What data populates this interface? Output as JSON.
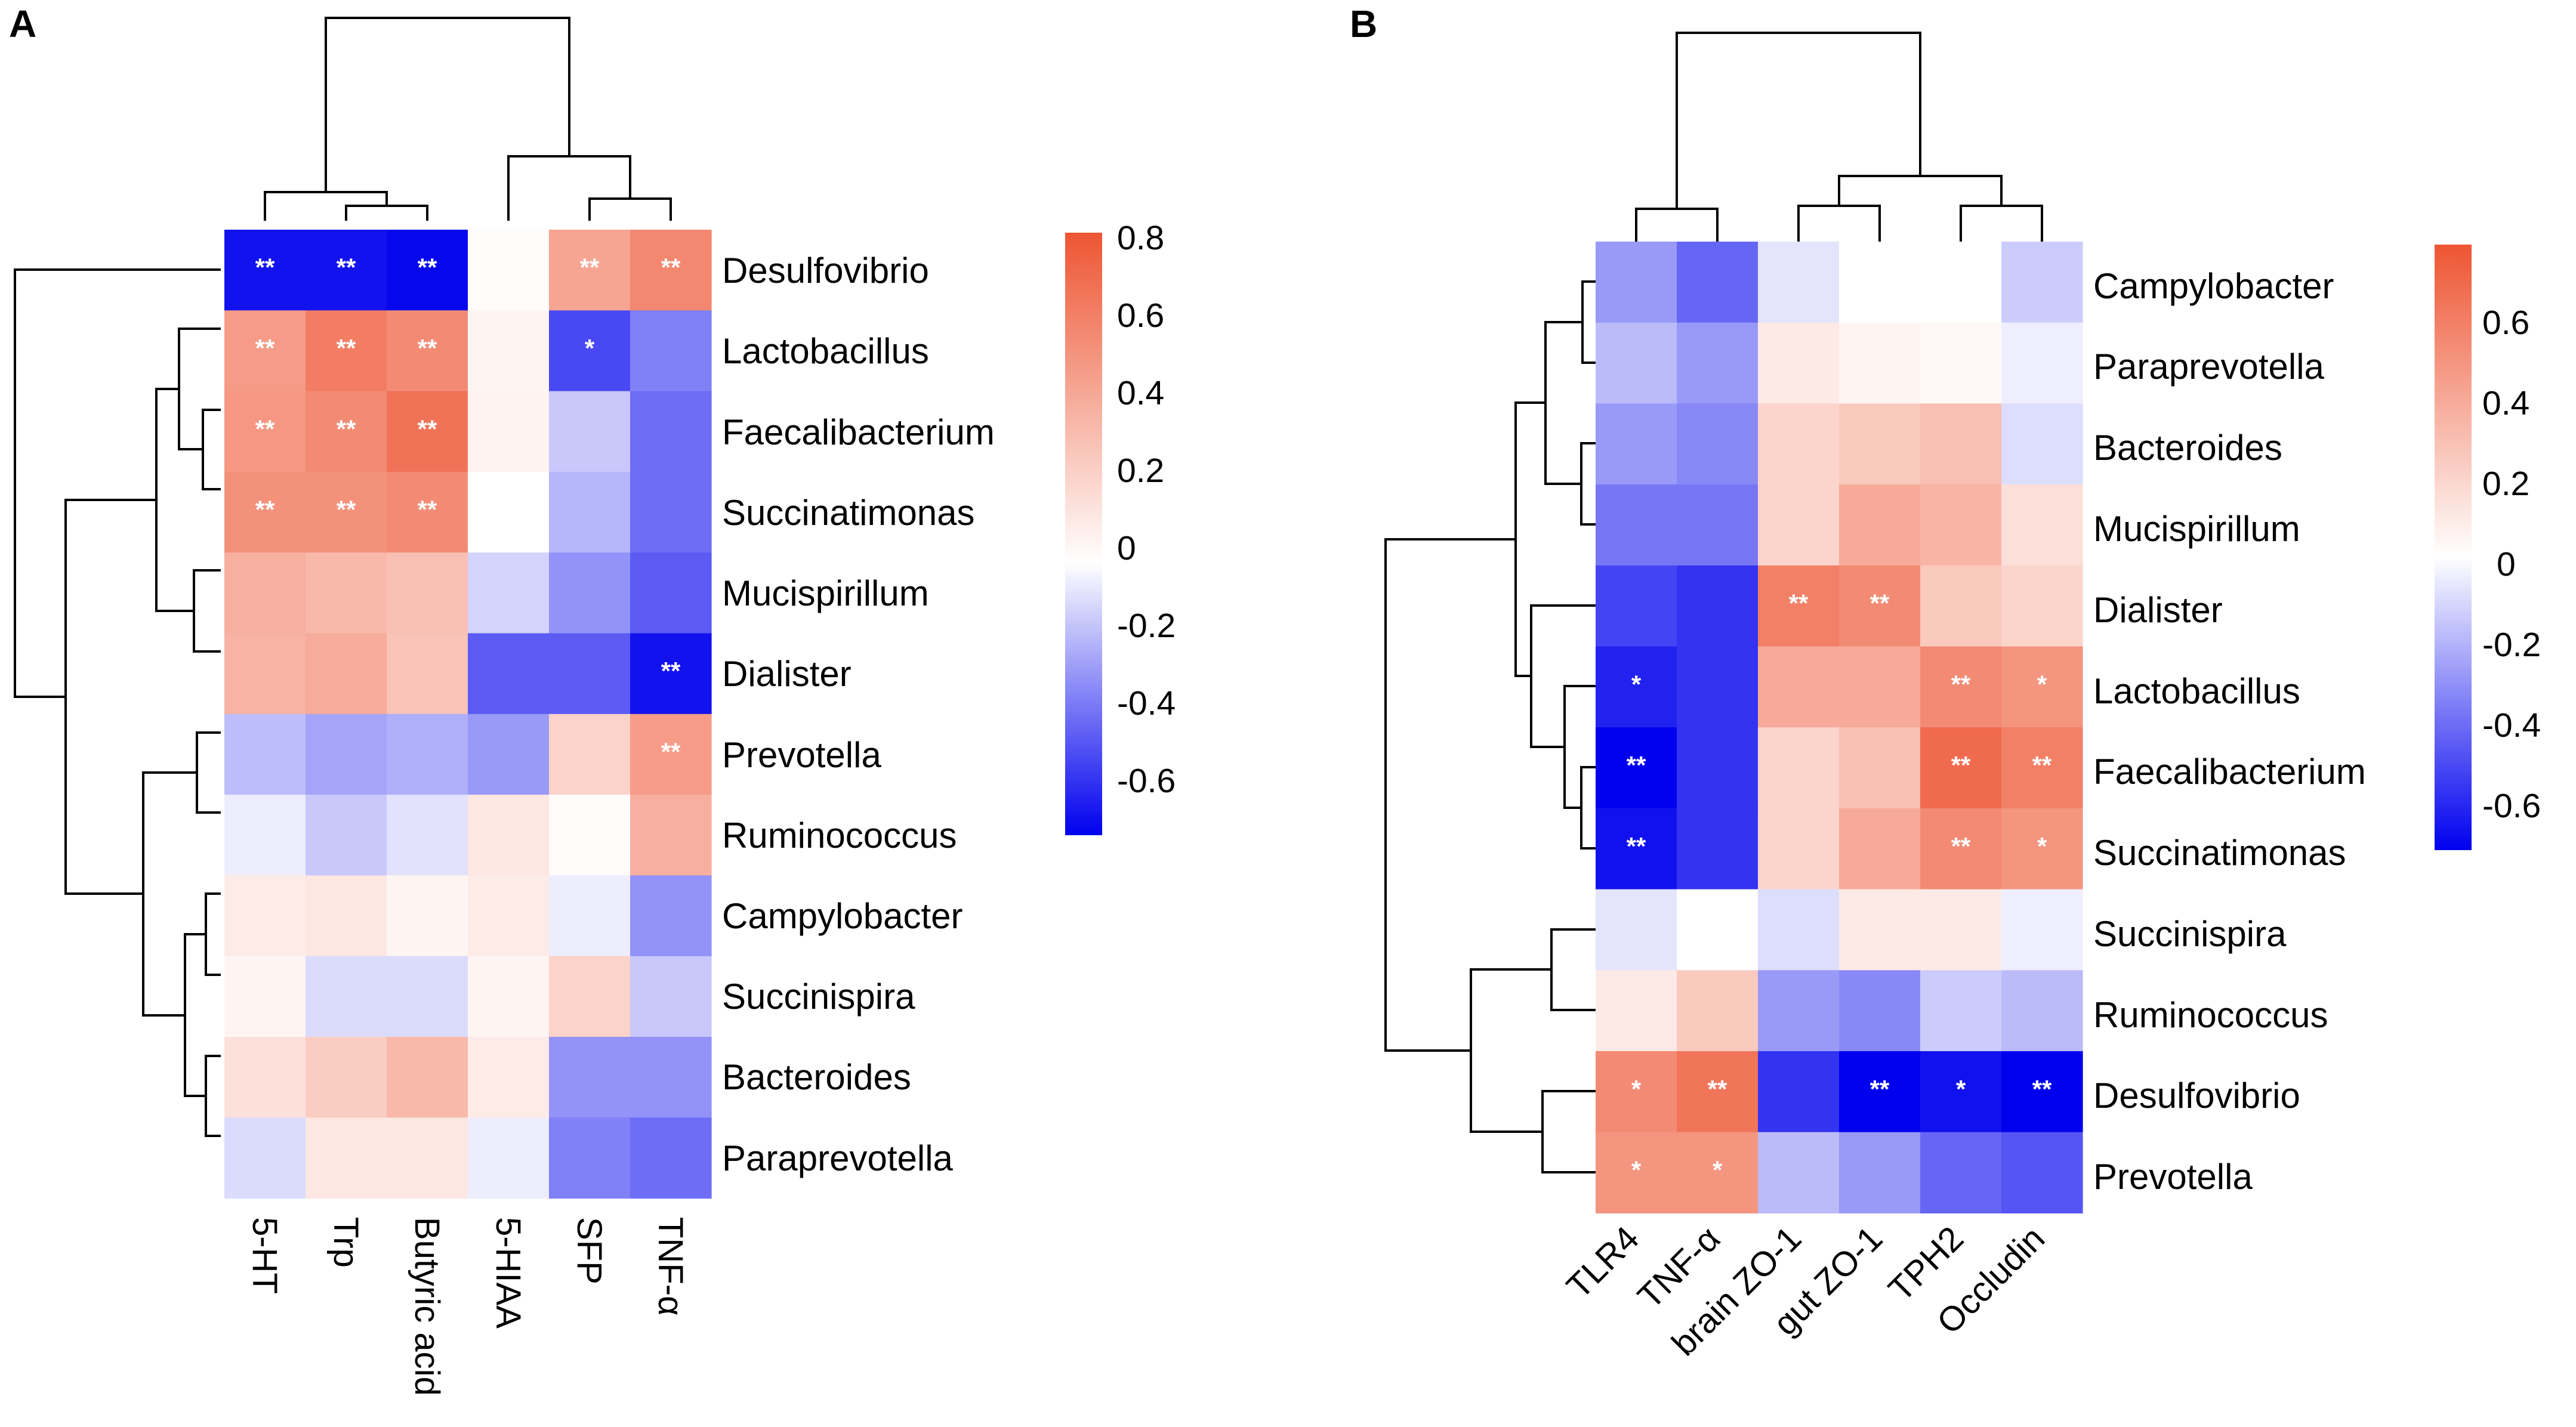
{
  "chart_data": [
    {
      "panel": "A",
      "type": "heatmap",
      "columns": [
        "5-HT",
        "Trp",
        "Butyric acid",
        "5-HIAA",
        "SFP",
        "TNF-α"
      ],
      "rows": [
        "Desulfovibrio",
        "Lactobacillus",
        "Faecalibacterium",
        "Succinatimonas",
        "Mucispirillum",
        "Dialister",
        "Prevotella",
        "Ruminococcus",
        "Campylobacter",
        "Succinispira",
        "Bacteroides",
        "Paraprevotella"
      ],
      "values": [
        [
          -0.65,
          -0.65,
          -0.68,
          0.02,
          0.45,
          0.6
        ],
        [
          0.5,
          0.65,
          0.58,
          0.05,
          -0.5,
          -0.35
        ],
        [
          0.52,
          0.58,
          0.7,
          0.06,
          -0.15,
          -0.4
        ],
        [
          0.55,
          0.55,
          0.58,
          0.0,
          -0.2,
          -0.4
        ],
        [
          0.4,
          0.35,
          0.32,
          -0.12,
          -0.3,
          -0.45
        ],
        [
          0.38,
          0.42,
          0.3,
          -0.45,
          -0.45,
          -0.65
        ],
        [
          -0.18,
          -0.25,
          -0.22,
          -0.28,
          0.22,
          0.5
        ],
        [
          -0.05,
          -0.15,
          -0.08,
          0.12,
          0.02,
          0.4
        ],
        [
          0.1,
          0.12,
          0.05,
          0.1,
          -0.05,
          -0.3
        ],
        [
          0.05,
          -0.1,
          -0.1,
          0.05,
          0.22,
          -0.15
        ],
        [
          0.15,
          0.25,
          0.35,
          0.1,
          -0.3,
          -0.3
        ],
        [
          -0.1,
          0.12,
          0.12,
          -0.05,
          -0.35,
          -0.4
        ]
      ],
      "significance": [
        [
          "**",
          "**",
          "**",
          "",
          "**",
          "**"
        ],
        [
          "**",
          "**",
          "**",
          "",
          "*",
          ""
        ],
        [
          "**",
          "**",
          "**",
          "",
          "",
          ""
        ],
        [
          "**",
          "**",
          "**",
          "",
          "",
          ""
        ],
        [
          "",
          "",
          "",
          "",
          "",
          ""
        ],
        [
          "",
          "",
          "",
          "",
          "",
          "**"
        ],
        [
          "",
          "",
          "",
          "",
          "",
          "**"
        ],
        [
          "",
          "",
          "",
          "",
          "",
          ""
        ],
        [
          "",
          "",
          "",
          "",
          "",
          ""
        ],
        [
          "",
          "",
          "",
          "",
          "",
          ""
        ],
        [
          "",
          "",
          "",
          "",
          "",
          ""
        ],
        [
          "",
          "",
          "",
          "",
          "",
          ""
        ]
      ],
      "colorbar": {
        "ticks": [
          "0.8",
          "0.6",
          "0.4",
          "0.2",
          "0",
          "-0.2",
          "-0.4",
          "-0.6"
        ],
        "range": [
          -0.7,
          0.85
        ],
        "colors": {
          "low": "#0000ee",
          "mid": "#ffffff",
          "high": "#ee5533"
        }
      }
    },
    {
      "panel": "B",
      "type": "heatmap",
      "columns": [
        "TLR4",
        "TNF-α",
        "brain ZO-1",
        "gut ZO-1",
        "TPH2",
        "Occludin"
      ],
      "rows": [
        "Campylobacter",
        "Paraprevotella",
        "Bacteroides",
        "Mucispirillum",
        "Dialister",
        "Lactobacillus",
        "Faecalibacterium",
        "Succinatimonas",
        "Succinispira",
        "Ruminococcus",
        "Desulfovibrio",
        "Prevotella"
      ],
      "values": [
        [
          -0.3,
          -0.45,
          -0.08,
          0.0,
          0.0,
          -0.15
        ],
        [
          -0.2,
          -0.3,
          0.1,
          0.05,
          0.03,
          -0.05
        ],
        [
          -0.3,
          -0.35,
          0.2,
          0.25,
          0.3,
          -0.1
        ],
        [
          -0.4,
          -0.4,
          0.2,
          0.4,
          0.35,
          0.15
        ],
        [
          -0.55,
          -0.6,
          0.6,
          0.55,
          0.25,
          0.2
        ],
        [
          -0.65,
          -0.6,
          0.4,
          0.4,
          0.55,
          0.5
        ],
        [
          -0.75,
          -0.6,
          0.2,
          0.3,
          0.7,
          0.6
        ],
        [
          -0.7,
          -0.6,
          0.2,
          0.4,
          0.55,
          0.5
        ],
        [
          -0.08,
          0.0,
          -0.1,
          0.1,
          0.1,
          -0.05
        ],
        [
          0.1,
          0.25,
          -0.3,
          -0.35,
          -0.15,
          -0.2
        ],
        [
          0.55,
          0.65,
          -0.6,
          -0.75,
          -0.7,
          -0.75
        ],
        [
          0.5,
          0.5,
          -0.2,
          -0.3,
          -0.45,
          -0.5
        ]
      ],
      "significance": [
        [
          "",
          "",
          "",
          "",
          "",
          ""
        ],
        [
          "",
          "",
          "",
          "",
          "",
          ""
        ],
        [
          "",
          "",
          "",
          "",
          "",
          ""
        ],
        [
          "",
          "",
          "",
          "",
          "",
          ""
        ],
        [
          "",
          "",
          "**",
          "**",
          "",
          ""
        ],
        [
          "*",
          "",
          "",
          "",
          "**",
          "*"
        ],
        [
          "**",
          "",
          "",
          "",
          "**",
          "**"
        ],
        [
          "**",
          "",
          "",
          "",
          "**",
          "*"
        ],
        [
          "",
          "",
          "",
          "",
          "",
          ""
        ],
        [
          "",
          "",
          "",
          "",
          "",
          ""
        ],
        [
          "*",
          "**",
          "",
          "**",
          "*",
          "**"
        ],
        [
          "*",
          "*",
          "",
          "",
          "",
          ""
        ]
      ],
      "colorbar": {
        "ticks": [
          "0.6",
          "0.4",
          "0.2",
          "0",
          "-0.2",
          "-0.4",
          "-0.6"
        ],
        "range": [
          -0.75,
          0.8
        ],
        "colors": {
          "low": "#0000ee",
          "mid": "#ffffff",
          "high": "#ee5533"
        }
      }
    }
  ]
}
